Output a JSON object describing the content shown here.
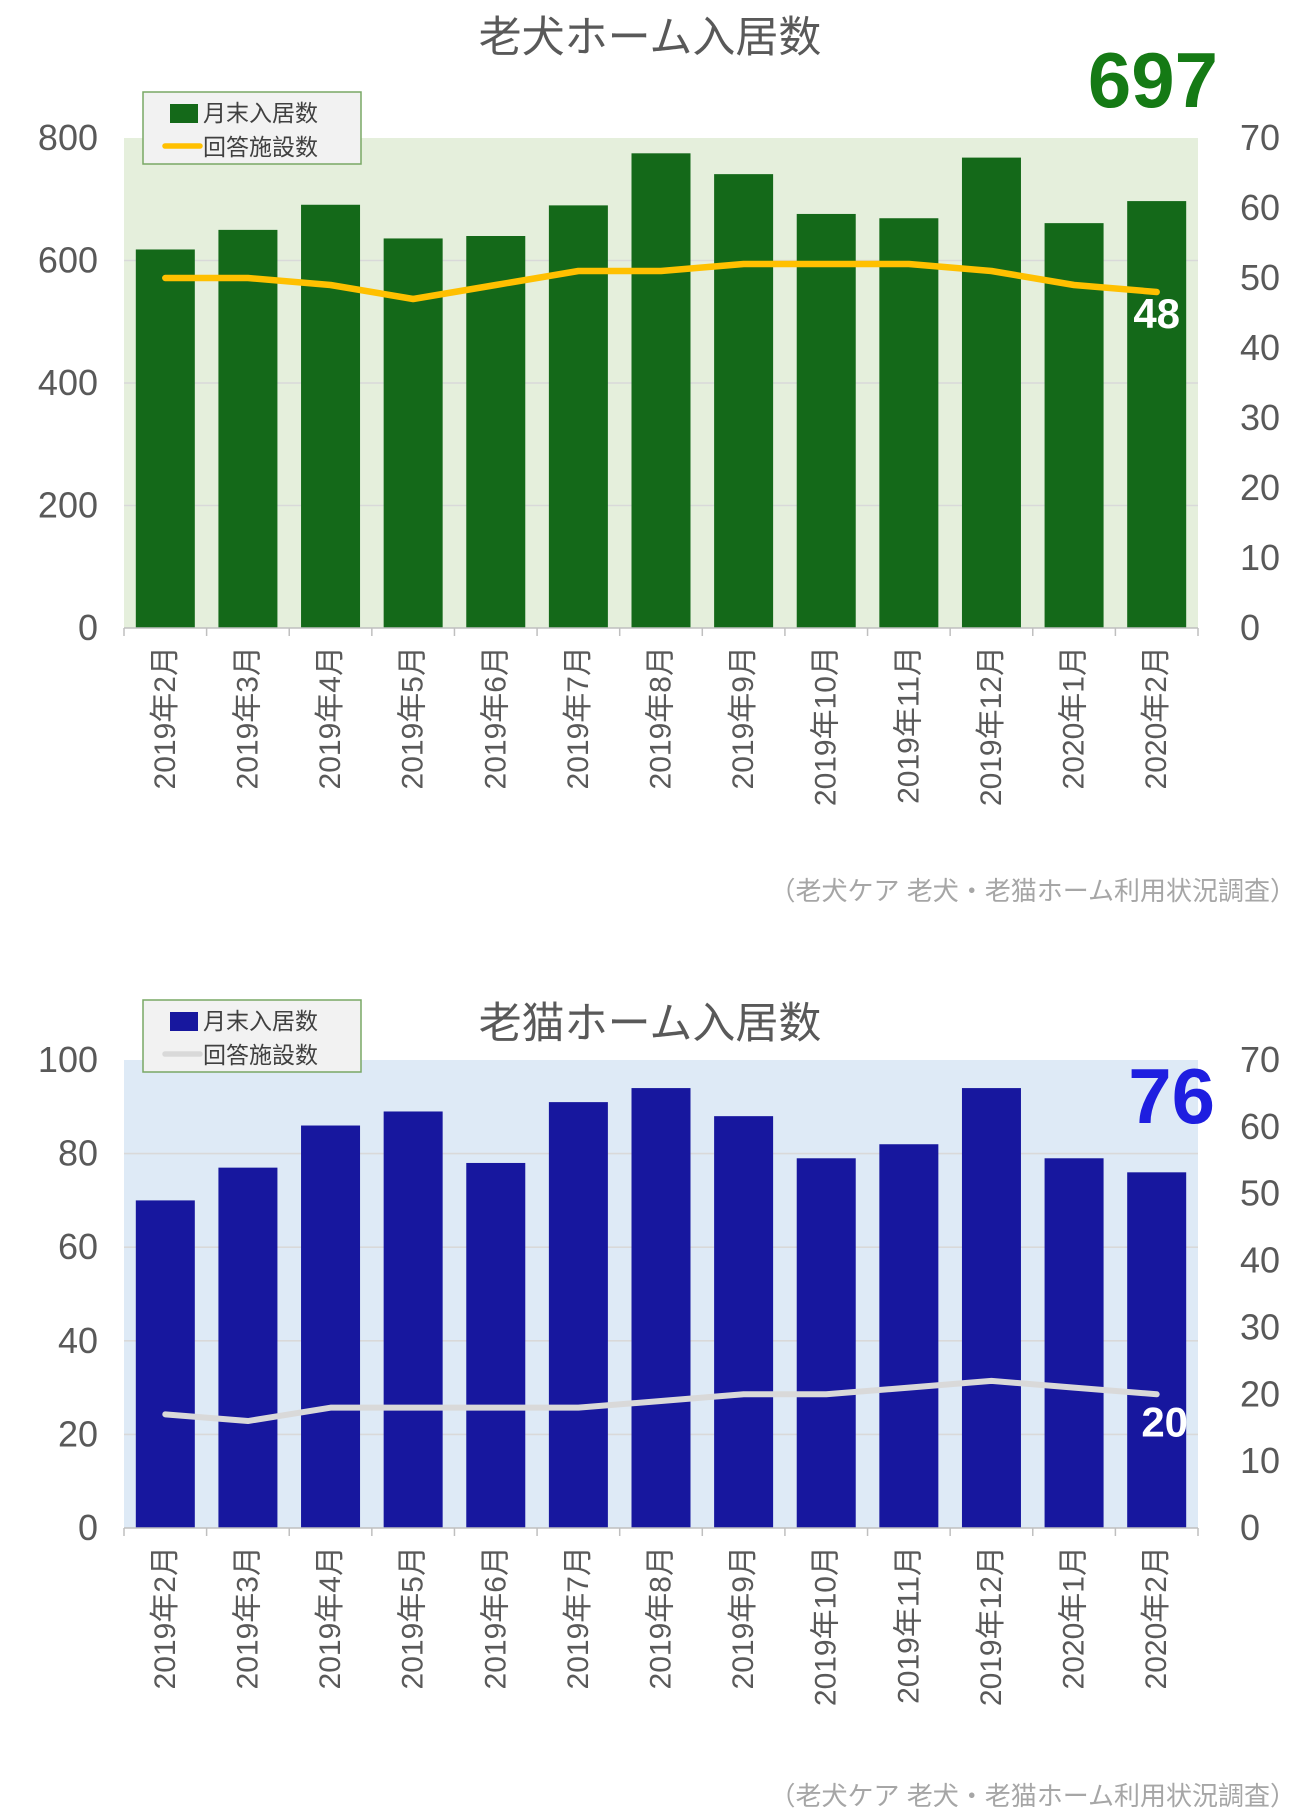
{
  "page": {
    "background": "#FFFFFF"
  },
  "chart_data": [
    {
      "type": "bar",
      "combo": "bar+line",
      "title": "老犬ホーム入居数",
      "big_number_label": "697",
      "line_end_label": "48",
      "source_note": "（老犬ケア 老犬・老猫ホーム利用状況調査）",
      "legend": {
        "bar_label": "月末入居数",
        "line_label": "回答施設数"
      },
      "legend_position": "top-left",
      "grid": "horizontal",
      "categories": [
        "2019年2月",
        "2019年3月",
        "2019年4月",
        "2019年5月",
        "2019年6月",
        "2019年7月",
        "2019年8月",
        "2019年9月",
        "2019年10月",
        "2019年11月",
        "2019年12月",
        "2020年1月",
        "2020年2月"
      ],
      "series": [
        {
          "name": "月末入居数",
          "type": "bar",
          "axis": "left",
          "values": [
            618,
            650,
            691,
            636,
            640,
            690,
            775,
            741,
            676,
            669,
            768,
            661,
            697
          ]
        },
        {
          "name": "回答施設数",
          "type": "line",
          "axis": "right",
          "values": [
            50,
            50,
            49,
            47,
            49,
            51,
            51,
            52,
            52,
            52,
            51,
            49,
            48
          ]
        }
      ],
      "left_axis": {
        "min": 0,
        "max": 800,
        "ticks": [
          800,
          600,
          400,
          200,
          0
        ]
      },
      "right_axis": {
        "min": 0,
        "max": 70,
        "ticks": [
          70,
          60,
          50,
          40,
          30,
          20,
          10,
          0
        ]
      },
      "colors": {
        "bar": "#146919",
        "line": "#FFC000",
        "plot_bg": "#E5EFDC",
        "big_number": "#157A15",
        "end_label": "#FFFFFF",
        "axis_text": "#595959",
        "legend_text": "#404040",
        "legend_border": "#79A865",
        "legend_bg": "#F2F2F2",
        "source_text": "#A6A6A6",
        "grid": "#D9D9D9",
        "axis_line": "#BFBFBF"
      }
    },
    {
      "type": "bar",
      "combo": "bar+line",
      "title": "老猫ホーム入居数",
      "big_number_label": "76",
      "line_end_label": "20",
      "source_note": "（老犬ケア 老犬・老猫ホーム利用状況調査）",
      "legend": {
        "bar_label": "月末入居数",
        "line_label": "回答施設数"
      },
      "legend_position": "top-left",
      "grid": "horizontal",
      "categories": [
        "2019年2月",
        "2019年3月",
        "2019年4月",
        "2019年5月",
        "2019年6月",
        "2019年7月",
        "2019年8月",
        "2019年9月",
        "2019年10月",
        "2019年11月",
        "2019年12月",
        "2020年1月",
        "2020年2月"
      ],
      "series": [
        {
          "name": "月末入居数",
          "type": "bar",
          "axis": "left",
          "values": [
            70,
            77,
            86,
            89,
            78,
            91,
            94,
            88,
            79,
            82,
            94,
            79,
            76
          ]
        },
        {
          "name": "回答施設数",
          "type": "line",
          "axis": "right",
          "values": [
            17,
            16,
            18,
            18,
            18,
            18,
            19,
            20,
            20,
            21,
            22,
            21,
            20
          ]
        }
      ],
      "left_axis": {
        "min": 0,
        "max": 100,
        "ticks": [
          100,
          80,
          60,
          40,
          20,
          0
        ]
      },
      "right_axis": {
        "min": 0,
        "max": 70,
        "ticks": [
          70,
          60,
          50,
          40,
          30,
          20,
          10,
          0
        ]
      },
      "colors": {
        "bar": "#17179E",
        "line": "#D9D9D9",
        "plot_bg": "#DEEAF6",
        "big_number": "#1E1EE0",
        "end_label": "#FFFFFF",
        "axis_text": "#595959",
        "legend_text": "#404040",
        "legend_border": "#79A865",
        "legend_bg": "#F2F2F2",
        "source_text": "#A6A6A6",
        "grid": "#D9D9D9",
        "axis_line": "#BFBFBF"
      }
    }
  ]
}
